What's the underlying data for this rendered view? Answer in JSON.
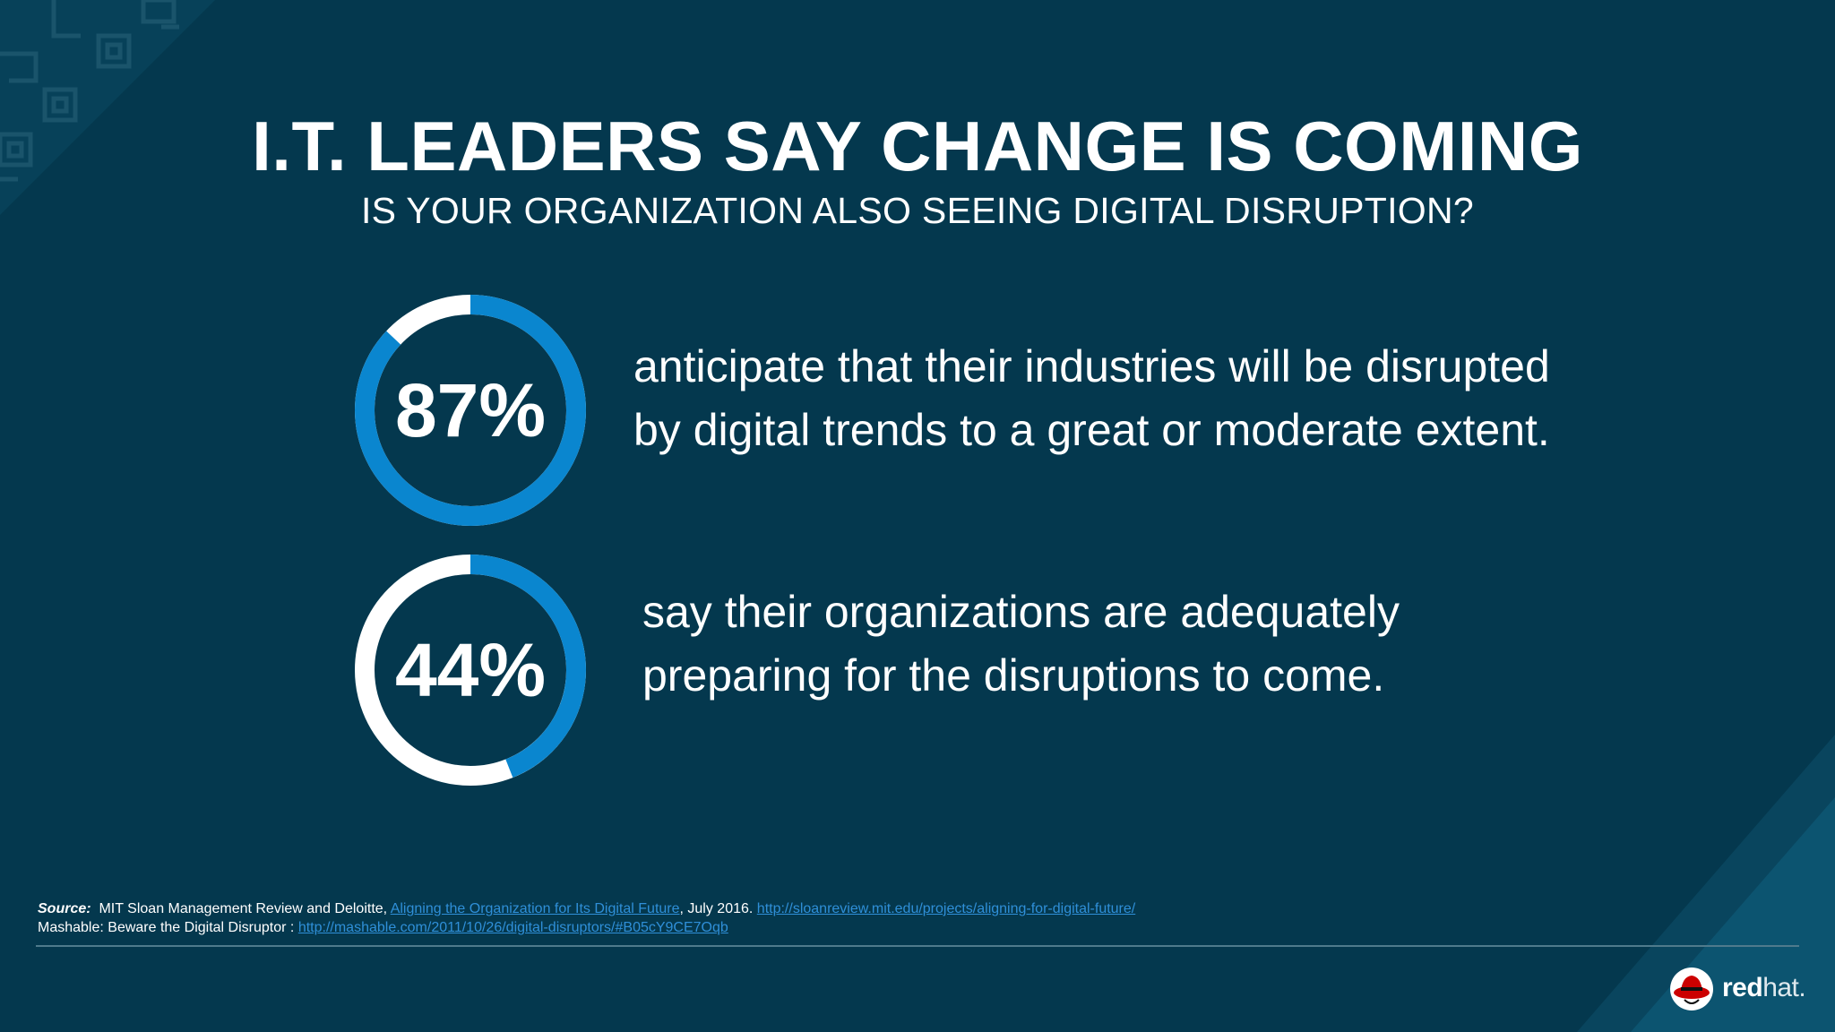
{
  "title": "I.T. LEADERS SAY CHANGE IS COMING",
  "subtitle": "IS YOUR ORGANIZATION ALSO SEEING DIGITAL DISRUPTION?",
  "colors": {
    "background": "#04384e",
    "ring_accent": "#0a86cf",
    "ring_base": "#ffffff",
    "link": "#2f8fd8"
  },
  "stats": [
    {
      "value_label": "87%",
      "percent": 87,
      "line1": "anticipate that their industries will be disrupted",
      "line2": "by digital trends to a great or moderate extent."
    },
    {
      "value_label": "44%",
      "percent": 44,
      "line1": "say their organizations are adequately",
      "line2": "preparing for the disruptions to come."
    }
  ],
  "sources": {
    "label": "Source:",
    "line1_text": "MIT Sloan Management Review and Deloitte,",
    "line1_link_title": "Aligning the Organization for Its Digital Future",
    "line1_date": ", July 2016.",
    "line1_url": "http://sloanreview.mit.edu/projects/aligning-for-digital-future/",
    "line2_text": "Mashable:  Beware the Digital Disruptor :",
    "line2_url": "http://mashable.com/2011/10/26/digital-disruptors/#B05cY9CE7Oqb"
  },
  "logo": {
    "icon": "red-hat-icon",
    "bold": "red",
    "light": "hat."
  }
}
